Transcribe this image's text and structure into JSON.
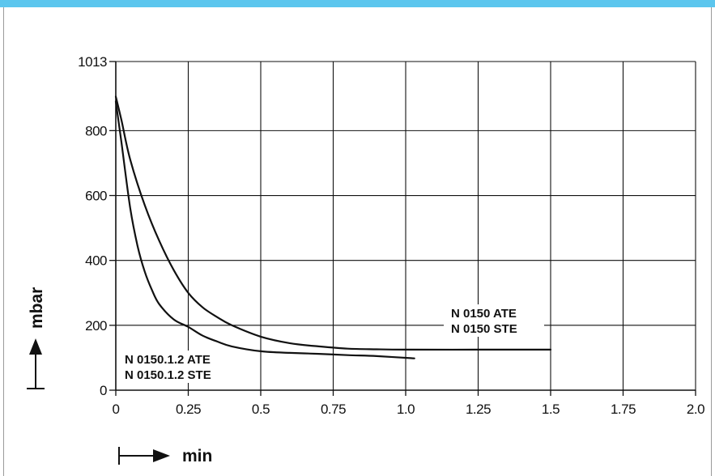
{
  "chart_data": {
    "type": "line",
    "xlabel": "min",
    "ylabel": "mbar",
    "xlim": [
      0,
      2.0
    ],
    "ylim": [
      0,
      1013
    ],
    "x_ticks": [
      {
        "value": 0,
        "label": "0"
      },
      {
        "value": 0.25,
        "label": "0.25"
      },
      {
        "value": 0.5,
        "label": "0.5"
      },
      {
        "value": 0.75,
        "label": "0.75"
      },
      {
        "value": 1.0,
        "label": "1.0"
      },
      {
        "value": 1.25,
        "label": "1.25"
      },
      {
        "value": 1.5,
        "label": "1.5"
      },
      {
        "value": 1.75,
        "label": "1.75"
      },
      {
        "value": 2.0,
        "label": "2.0"
      }
    ],
    "y_ticks": [
      {
        "value": 0,
        "label": "0"
      },
      {
        "value": 200,
        "label": "200"
      },
      {
        "value": 400,
        "label": "400"
      },
      {
        "value": 600,
        "label": "600"
      },
      {
        "value": 800,
        "label": "800"
      },
      {
        "value": 1013,
        "label": "1013"
      }
    ],
    "grid": true,
    "series": [
      {
        "name_lines": [
          "N 0150 ATE",
          "N 0150 STE"
        ],
        "x": [
          0,
          0.02,
          0.05,
          0.1,
          0.15,
          0.2,
          0.25,
          0.3,
          0.35,
          0.4,
          0.5,
          0.6,
          0.7,
          0.8,
          0.9,
          1.0,
          1.25,
          1.5
        ],
        "y": [
          905,
          830,
          710,
          570,
          460,
          370,
          300,
          255,
          225,
          200,
          165,
          145,
          135,
          128,
          126,
          125,
          125,
          125
        ]
      },
      {
        "name_lines": [
          "N 0150.1.2 ATE",
          "N 0150.1.2 STE"
        ],
        "x": [
          0,
          0.02,
          0.05,
          0.075,
          0.1,
          0.125,
          0.15,
          0.2,
          0.25,
          0.3,
          0.35,
          0.4,
          0.5,
          0.6,
          0.7,
          0.8,
          0.9,
          1.03
        ],
        "y": [
          890,
          760,
          560,
          445,
          365,
          308,
          265,
          218,
          195,
          168,
          150,
          135,
          120,
          115,
          112,
          108,
          105,
          98
        ]
      }
    ]
  }
}
